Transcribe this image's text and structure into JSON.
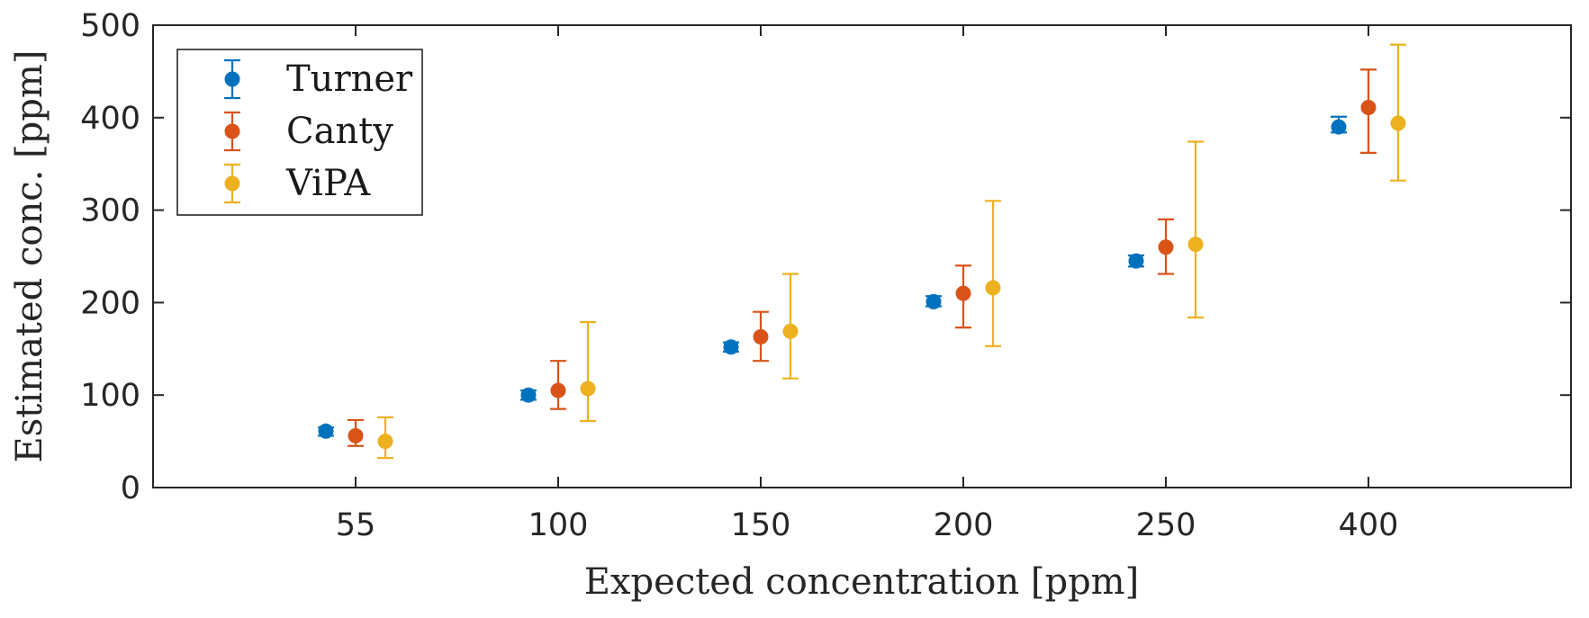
{
  "chart_data": {
    "type": "scatter",
    "title": "",
    "xlabel": "Expected concentration [ppm]",
    "ylabel": "Estimated conc.  [ppm]",
    "categories": [
      "55",
      "100",
      "150",
      "200",
      "250",
      "400"
    ],
    "ylim": [
      0,
      500
    ],
    "yticks": [
      "0",
      "100",
      "200",
      "300",
      "400",
      "500"
    ],
    "grid": false,
    "legend_position": "top-left",
    "series": [
      {
        "name": "Turner",
        "color": "#0072BD",
        "values": [
          61,
          100,
          152,
          201,
          245,
          390
        ],
        "err_low": [
          56,
          95,
          147,
          196,
          239,
          384
        ],
        "err_high": [
          65,
          105,
          157,
          207,
          251,
          401
        ]
      },
      {
        "name": "Canty",
        "color": "#D95319",
        "values": [
          56,
          105,
          163,
          210,
          260,
          411
        ],
        "err_low": [
          45,
          85,
          137,
          173,
          231,
          362
        ],
        "err_high": [
          73,
          137,
          190,
          240,
          290,
          452
        ]
      },
      {
        "name": "ViPA",
        "color": "#EDB120",
        "values": [
          50,
          107,
          169,
          216,
          263,
          394
        ],
        "err_low": [
          32,
          72,
          118,
          153,
          184,
          332
        ],
        "err_high": [
          76,
          179,
          231,
          310,
          374,
          479
        ]
      }
    ]
  }
}
